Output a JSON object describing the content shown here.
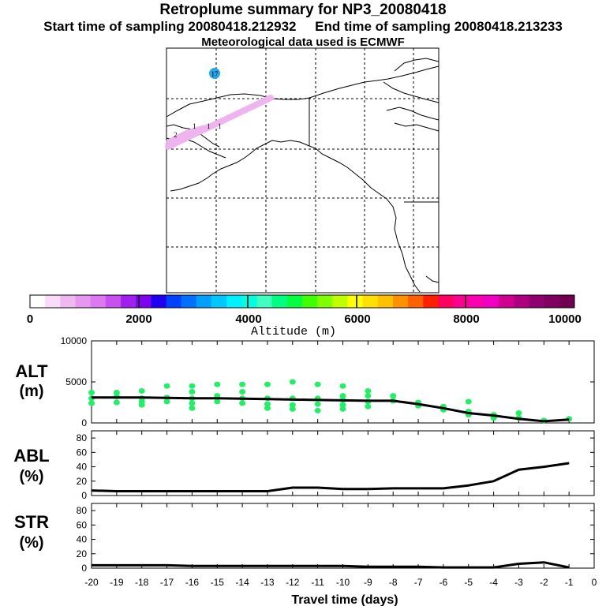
{
  "header": {
    "title": "Retroplume summary for NP3_20080418",
    "start_label": "Start time of sampling 20080418.212932",
    "end_label": "End time of sampling 20080418.213233",
    "met_label": "Meteorological data used is ECMWF"
  },
  "map": {
    "release_marker": "17",
    "day_labels": [
      "2",
      "1",
      "1",
      "1"
    ],
    "plume_color": "#eeb4ee",
    "marker_color": "#2aa6ea"
  },
  "colorbar": {
    "xlabel": "Altitude (m)",
    "tick_labels": [
      "0",
      "2000",
      "4000",
      "6000",
      "8000",
      "10000"
    ],
    "colors": [
      "#ffffff",
      "#fadcfa",
      "#f0b8f0",
      "#e698f0",
      "#dc78f0",
      "#c850f0",
      "#a020f0",
      "#8000f0",
      "#2000f0",
      "#0040ff",
      "#0070ff",
      "#00a0ff",
      "#00c8ff",
      "#00f0ff",
      "#00ffe0",
      "#40ffc0",
      "#00ff80",
      "#00ff40",
      "#40ff00",
      "#80ff00",
      "#c0ff00",
      "#ffff00",
      "#ffe000",
      "#ffc000",
      "#ff9000",
      "#ff6000",
      "#ff2000",
      "#ff0060",
      "#ff0090",
      "#ff00b0",
      "#f000c0",
      "#d00090",
      "#b00080",
      "#900070",
      "#800060",
      "#700050"
    ]
  },
  "chart_data": [
    {
      "type": "line",
      "title": "ALT",
      "ylabel": "ALT (m)",
      "ylim": [
        0,
        10000
      ],
      "yticks": [
        "0",
        "5000",
        "10000"
      ],
      "x": [
        -20,
        -19,
        -18,
        -17,
        -16,
        -15,
        -14,
        -13,
        -12,
        -11,
        -10,
        -9,
        -8,
        -7,
        -6,
        -5,
        -4,
        -3,
        -2,
        -1
      ],
      "values": [
        3100,
        3100,
        3100,
        3050,
        3000,
        3000,
        2950,
        2900,
        2850,
        2800,
        2750,
        2700,
        2700,
        2300,
        1800,
        1200,
        900,
        500,
        200,
        400
      ],
      "scatter_color": "#22ee66",
      "scatter": [
        {
          "x": -20,
          "y": 3000
        },
        {
          "x": -20,
          "y": 3700
        },
        {
          "x": -20,
          "y": 2400
        },
        {
          "x": -19,
          "y": 3200
        },
        {
          "x": -19,
          "y": 3700
        },
        {
          "x": -19,
          "y": 2500
        },
        {
          "x": -18,
          "y": 3000
        },
        {
          "x": -18,
          "y": 3900
        },
        {
          "x": -18,
          "y": 2600
        },
        {
          "x": -18,
          "y": 2200
        },
        {
          "x": -17,
          "y": 3100
        },
        {
          "x": -17,
          "y": 4500
        },
        {
          "x": -17,
          "y": 2600
        },
        {
          "x": -16,
          "y": 3000
        },
        {
          "x": -16,
          "y": 3800
        },
        {
          "x": -16,
          "y": 2400
        },
        {
          "x": -16,
          "y": 4500
        },
        {
          "x": -16,
          "y": 1800
        },
        {
          "x": -15,
          "y": 3300
        },
        {
          "x": -15,
          "y": 2600
        },
        {
          "x": -15,
          "y": 4700
        },
        {
          "x": -14,
          "y": 3000
        },
        {
          "x": -14,
          "y": 3800
        },
        {
          "x": -14,
          "y": 2400
        },
        {
          "x": -14,
          "y": 4700
        },
        {
          "x": -13,
          "y": 3000
        },
        {
          "x": -13,
          "y": 2300
        },
        {
          "x": -13,
          "y": 4700
        },
        {
          "x": -13,
          "y": 1800
        },
        {
          "x": -12,
          "y": 3000
        },
        {
          "x": -12,
          "y": 2200
        },
        {
          "x": -12,
          "y": 5000
        },
        {
          "x": -12,
          "y": 1700
        },
        {
          "x": -11,
          "y": 3000
        },
        {
          "x": -11,
          "y": 2300
        },
        {
          "x": -11,
          "y": 4700
        },
        {
          "x": -11,
          "y": 1500
        },
        {
          "x": -10,
          "y": 3300
        },
        {
          "x": -10,
          "y": 2800
        },
        {
          "x": -10,
          "y": 2200
        },
        {
          "x": -10,
          "y": 1700
        },
        {
          "x": -10,
          "y": 4500
        },
        {
          "x": -9,
          "y": 3300
        },
        {
          "x": -9,
          "y": 3900
        },
        {
          "x": -9,
          "y": 2600
        },
        {
          "x": -9,
          "y": 2000
        },
        {
          "x": -8,
          "y": 3300
        },
        {
          "x": -8,
          "y": 2700
        },
        {
          "x": -7,
          "y": 2500
        },
        {
          "x": -7,
          "y": 2100
        },
        {
          "x": -6,
          "y": 2000
        },
        {
          "x": -6,
          "y": 1600
        },
        {
          "x": -5,
          "y": 1400
        },
        {
          "x": -5,
          "y": 1000
        },
        {
          "x": -5,
          "y": 2600
        },
        {
          "x": -4,
          "y": 1000
        },
        {
          "x": -4,
          "y": 600
        },
        {
          "x": -3,
          "y": 1200
        },
        {
          "x": -3,
          "y": 600
        },
        {
          "x": -2,
          "y": 300
        },
        {
          "x": -1,
          "y": 500
        }
      ]
    },
    {
      "type": "line",
      "title": "ABL",
      "ylabel": "ABL (%)",
      "ylim": [
        0,
        90
      ],
      "yticks": [
        "0",
        "20",
        "40",
        "60",
        "80"
      ],
      "x": [
        -20,
        -19,
        -18,
        -17,
        -16,
        -15,
        -14,
        -13,
        -12,
        -11,
        -10,
        -9,
        -8,
        -7,
        -6,
        -5,
        -4,
        -3,
        -2,
        -1
      ],
      "values": [
        7,
        6,
        6,
        6,
        6,
        6,
        6,
        6,
        11,
        11,
        9,
        9,
        10,
        10,
        10,
        14,
        20,
        36,
        40,
        45
      ]
    },
    {
      "type": "line",
      "title": "STR",
      "ylabel": "STR (%)",
      "ylim": [
        0,
        90
      ],
      "yticks": [
        "0",
        "20",
        "40",
        "60",
        "80"
      ],
      "x": [
        -20,
        -19,
        -18,
        -17,
        -16,
        -15,
        -14,
        -13,
        -12,
        -11,
        -10,
        -9,
        -8,
        -7,
        -6,
        -5,
        -4,
        -3,
        -2,
        -1
      ],
      "values": [
        4,
        4,
        4,
        4,
        3,
        3,
        3,
        3,
        3,
        3,
        3,
        2,
        2,
        2,
        1,
        1,
        1,
        6,
        8,
        1
      ],
      "xlabel": "Travel time (days)",
      "xticks": [
        "-20",
        "-19",
        "-18",
        "-17",
        "-16",
        "-15",
        "-14",
        "-13",
        "-12",
        "-11",
        "-10",
        "-9",
        "-8",
        "-7",
        "-6",
        "-5",
        "-4",
        "-3",
        "-2",
        "-1",
        "0"
      ]
    }
  ]
}
